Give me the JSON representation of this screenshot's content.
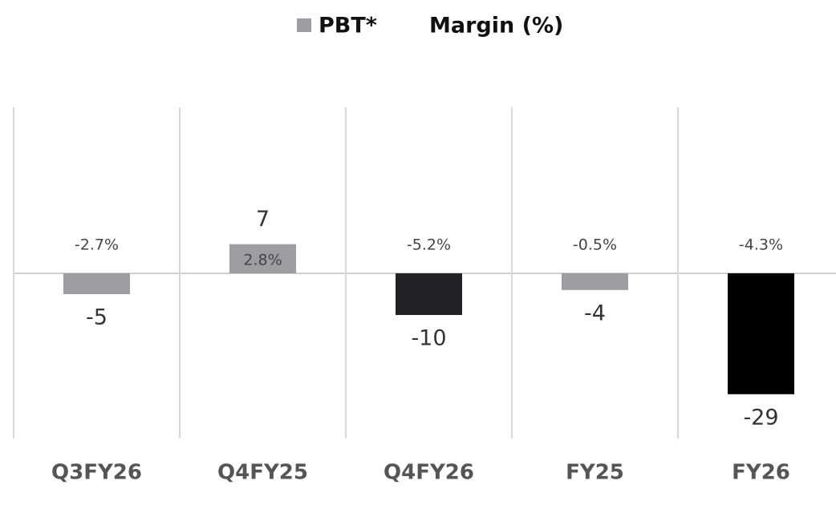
{
  "chart_data": {
    "type": "bar",
    "categories": [
      "Q3FY26",
      "Q4FY25",
      "Q4FY26",
      "FY25",
      "FY26"
    ],
    "series": [
      {
        "name": "PBT*",
        "color": "#9d9ea2",
        "values": [
          -5,
          7,
          -10,
          -4,
          -29
        ],
        "colors": [
          "#9d9ea2",
          "#9d9ea2",
          "#222326",
          "#9d9ea2",
          "#000000"
        ]
      },
      {
        "name": "Margin (%)",
        "values": [
          -2.7,
          2.8,
          -5.2,
          -0.5,
          -4.3
        ],
        "value_labels": [
          "-2.7%",
          "2.8%",
          "-5.2%",
          "-0.5%",
          "-4.3%"
        ]
      }
    ]
  }
}
